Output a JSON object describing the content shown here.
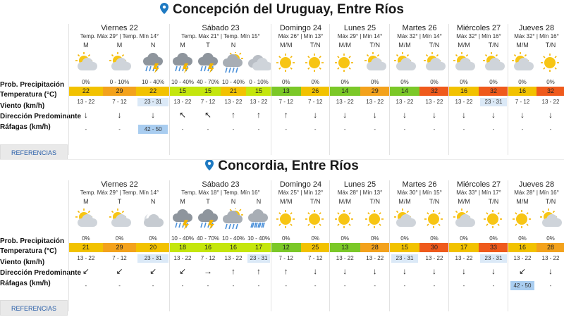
{
  "row_labels": [
    "Prob. Precipitación",
    "Temperatura (°C)",
    "Viento (km/h)",
    "Dirección Predominante",
    "Ráfagas (km/h)"
  ],
  "ref_label": "REFERENCIAS",
  "colors": {
    "yellow": "#f2c200",
    "orange": "#f3a21c",
    "green": "#7bc828",
    "lime": "#c4e60d",
    "red": "#ef5a1c",
    "gust": "#a9cdf0",
    "windbg": "#dbe9f7"
  },
  "cities": [
    {
      "title": "Concepción del Uruguay, Entre Ríos",
      "days": [
        {
          "name": "Viernes 22",
          "temps": "Temp. Máx 29° | Temp. Mín 14°",
          "periods": [
            {
              "ph": "M",
              "icon": "cloud-sun",
              "precip": "0%",
              "temp": "22",
              "tempColor": "yellow",
              "wind": "13 - 22",
              "windHL": false,
              "dir": "↓",
              "gust": "-",
              "gustHL": false
            },
            {
              "ph": "M",
              "icon": "cloud-sun",
              "precip": "0 - 10%",
              "temp": "29",
              "tempColor": "orange",
              "wind": "7 - 12",
              "windHL": false,
              "dir": "↓",
              "gust": "-",
              "gustHL": false
            },
            {
              "ph": "N",
              "icon": "storm",
              "precip": "10 - 40%",
              "temp": "22",
              "tempColor": "yellow",
              "wind": "23 - 31",
              "windHL": true,
              "dir": "↓",
              "gust": "42 - 50",
              "gustHL": true
            }
          ]
        },
        {
          "name": "Sábado 23",
          "temps": "Temp. Máx 21° | Temp. Mín 15°",
          "periods": [
            {
              "ph": "M",
              "icon": "storm",
              "precip": "10 - 40%",
              "temp": "15",
              "tempColor": "lime",
              "wind": "13 - 22",
              "windHL": false,
              "dir": "↖",
              "gust": "-",
              "gustHL": false
            },
            {
              "ph": "T",
              "icon": "storm",
              "precip": "40 - 70%",
              "temp": "15",
              "tempColor": "lime",
              "wind": "7 - 12",
              "windHL": false,
              "dir": "↖",
              "gust": "-",
              "gustHL": false
            },
            {
              "ph": "N",
              "icon": "rain-sun",
              "precip": "10 - 40%",
              "temp": "21",
              "tempColor": "yellow",
              "wind": "13 - 22",
              "windHL": false,
              "dir": "↑",
              "gust": "-",
              "gustHL": false
            },
            {
              "ph": "",
              "icon": "cloud",
              "precip": "0 - 10%",
              "temp": "15",
              "tempColor": "lime",
              "wind": "13 - 22",
              "windHL": false,
              "dir": "↑",
              "gust": "-",
              "gustHL": false
            }
          ]
        },
        {
          "name": "Domingo 24",
          "temps": "Máx 26° | Mín 13°",
          "periods": [
            {
              "ph": "M/M",
              "icon": "sun",
              "precip": "0%",
              "temp": "13",
              "tempColor": "green",
              "wind": "7 - 12",
              "windHL": false,
              "dir": "↑",
              "gust": "-",
              "gustHL": false
            },
            {
              "ph": "T/N",
              "icon": "sun",
              "precip": "0%",
              "temp": "26",
              "tempColor": "yellow",
              "wind": "7 - 12",
              "windHL": false,
              "dir": "↓",
              "gust": "-",
              "gustHL": false
            }
          ]
        },
        {
          "name": "Lunes 25",
          "temps": "Máx 29° | Mín 14°",
          "periods": [
            {
              "ph": "M/M",
              "icon": "sun",
              "precip": "0%",
              "temp": "14",
              "tempColor": "green",
              "wind": "13 - 22",
              "windHL": false,
              "dir": "↓",
              "gust": "-",
              "gustHL": false
            },
            {
              "ph": "T/N",
              "icon": "cloud-sun",
              "precip": "0%",
              "temp": "29",
              "tempColor": "orange",
              "wind": "13 - 22",
              "windHL": false,
              "dir": "↓",
              "gust": "-",
              "gustHL": false
            }
          ]
        },
        {
          "name": "Martes 26",
          "temps": "Máx 32° | Mín 14°",
          "periods": [
            {
              "ph": "M/M",
              "icon": "cloud-sun",
              "precip": "0%",
              "temp": "14",
              "tempColor": "green",
              "wind": "13 - 22",
              "windHL": false,
              "dir": "↓",
              "gust": "-",
              "gustHL": false
            },
            {
              "ph": "T/N",
              "icon": "cloud-sun",
              "precip": "0%",
              "temp": "32",
              "tempColor": "red",
              "wind": "13 - 22",
              "windHL": false,
              "dir": "↓",
              "gust": "-",
              "gustHL": false
            }
          ]
        },
        {
          "name": "Miércoles 27",
          "temps": "Máx 32° | Mín 16°",
          "periods": [
            {
              "ph": "M/M",
              "icon": "cloud-sun",
              "precip": "0%",
              "temp": "16",
              "tempColor": "yellow",
              "wind": "13 - 22",
              "windHL": false,
              "dir": "↓",
              "gust": "-",
              "gustHL": false
            },
            {
              "ph": "T/N",
              "icon": "cloud-sun",
              "precip": "0%",
              "temp": "32",
              "tempColor": "red",
              "wind": "23 - 31",
              "windHL": true,
              "dir": "↓",
              "gust": "-",
              "gustHL": false
            }
          ]
        },
        {
          "name": "Jueves 28",
          "temps": "Máx 32° | Mín 16°",
          "periods": [
            {
              "ph": "M/M",
              "icon": "cloud-sun",
              "precip": "0%",
              "temp": "16",
              "tempColor": "yellow",
              "wind": "7 - 12",
              "windHL": false,
              "dir": "↓",
              "gust": "-",
              "gustHL": false
            },
            {
              "ph": "T/N",
              "icon": "sun",
              "precip": "0%",
              "temp": "32",
              "tempColor": "red",
              "wind": "13 - 22",
              "windHL": false,
              "dir": "↓",
              "gust": "-",
              "gustHL": false
            }
          ]
        }
      ]
    },
    {
      "title": "Concordia, Entre Ríos",
      "days": [
        {
          "name": "Viernes 22",
          "temps": "Temp. Máx 29° | Temp. Mín 14°",
          "periods": [
            {
              "ph": "M",
              "icon": "cloud-sun",
              "precip": "0%",
              "temp": "21",
              "tempColor": "yellow",
              "wind": "13 - 22",
              "windHL": false,
              "dir": "↙",
              "gust": "-",
              "gustHL": false
            },
            {
              "ph": "T",
              "icon": "cloud-sun",
              "precip": "0%",
              "temp": "29",
              "tempColor": "orange",
              "wind": "7 - 12",
              "windHL": false,
              "dir": "↙",
              "gust": "-",
              "gustHL": false
            },
            {
              "ph": "N",
              "icon": "cloud-moon",
              "precip": "0%",
              "temp": "20",
              "tempColor": "yellow",
              "wind": "23 - 31",
              "windHL": true,
              "dir": "↙",
              "gust": "-",
              "gustHL": false
            }
          ]
        },
        {
          "name": "Sábado 23",
          "temps": "Temp. Máx 18° | Temp. Mín 16°",
          "periods": [
            {
              "ph": "M",
              "icon": "storm",
              "precip": "10 - 40%",
              "temp": "18",
              "tempColor": "lime",
              "wind": "13 - 22",
              "windHL": false,
              "dir": "↙",
              "gust": "-",
              "gustHL": false
            },
            {
              "ph": "T",
              "icon": "storm",
              "precip": "40 - 70%",
              "temp": "16",
              "tempColor": "lime",
              "wind": "7 - 12",
              "windHL": false,
              "dir": "→",
              "gust": "-",
              "gustHL": false
            },
            {
              "ph": "N",
              "icon": "rain-sun",
              "precip": "10 - 40%",
              "temp": "16",
              "tempColor": "lime",
              "wind": "13 - 22",
              "windHL": false,
              "dir": "↑",
              "gust": "-",
              "gustHL": false
            },
            {
              "ph": "N",
              "icon": "rain-cloud",
              "precip": "10 - 40%",
              "temp": "17",
              "tempColor": "lime",
              "wind": "23 - 31",
              "windHL": true,
              "dir": "↑",
              "gust": "-",
              "gustHL": false
            }
          ]
        },
        {
          "name": "Domingo 24",
          "temps": "Máx 25° | Mín 12°",
          "periods": [
            {
              "ph": "M/M",
              "icon": "sun",
              "precip": "0%",
              "temp": "12",
              "tempColor": "green",
              "wind": "7 - 12",
              "windHL": false,
              "dir": "↑",
              "gust": "-",
              "gustHL": false
            },
            {
              "ph": "T/N",
              "icon": "sun",
              "precip": "0%",
              "temp": "25",
              "tempColor": "yellow",
              "wind": "7 - 12",
              "windHL": false,
              "dir": "↓",
              "gust": "-",
              "gustHL": false
            }
          ]
        },
        {
          "name": "Lunes 25",
          "temps": "Máx 28° | Mín 13°",
          "periods": [
            {
              "ph": "M/M",
              "icon": "sun",
              "precip": "0%",
              "temp": "13",
              "tempColor": "green",
              "wind": "13 - 22",
              "windHL": false,
              "dir": "↓",
              "gust": "-",
              "gustHL": false
            },
            {
              "ph": "T/N",
              "icon": "sun",
              "precip": "0%",
              "temp": "28",
              "tempColor": "orange",
              "wind": "13 - 22",
              "windHL": false,
              "dir": "↓",
              "gust": "-",
              "gustHL": false
            }
          ]
        },
        {
          "name": "Martes 26",
          "temps": "Máx 30° | Mín 15°",
          "periods": [
            {
              "ph": "M/M",
              "icon": "cloud-sun",
              "precip": "0%",
              "temp": "15",
              "tempColor": "yellow",
              "wind": "23 - 31",
              "windHL": true,
              "dir": "↓",
              "gust": "-",
              "gustHL": false
            },
            {
              "ph": "T/N",
              "icon": "sun",
              "precip": "0%",
              "temp": "30",
              "tempColor": "red",
              "wind": "13 - 22",
              "windHL": false,
              "dir": "↓",
              "gust": "-",
              "gustHL": false
            }
          ]
        },
        {
          "name": "Miércoles 27",
          "temps": "Máx 33° | Mín 17°",
          "periods": [
            {
              "ph": "M/M",
              "icon": "cloud-sun",
              "precip": "0%",
              "temp": "17",
              "tempColor": "yellow",
              "wind": "13 - 22",
              "windHL": false,
              "dir": "↓",
              "gust": "-",
              "gustHL": false
            },
            {
              "ph": "T/N",
              "icon": "sun",
              "precip": "0%",
              "temp": "33",
              "tempColor": "red",
              "wind": "23 - 31",
              "windHL": true,
              "dir": "↓",
              "gust": "-",
              "gustHL": false
            }
          ]
        },
        {
          "name": "Jueves 28",
          "temps": "Máx 28° | Mín 16°",
          "periods": [
            {
              "ph": "M/M",
              "icon": "sun",
              "precip": "0%",
              "temp": "16",
              "tempColor": "yellow",
              "wind": "13 - 22",
              "windHL": false,
              "dir": "↙",
              "gust": "42 - 50",
              "gustHL": true
            },
            {
              "ph": "T/N",
              "icon": "cloud-sun",
              "precip": "0%",
              "temp": "28",
              "tempColor": "orange",
              "wind": "13 - 22",
              "windHL": false,
              "dir": "↓",
              "gust": "-",
              "gustHL": false
            }
          ]
        }
      ]
    }
  ]
}
